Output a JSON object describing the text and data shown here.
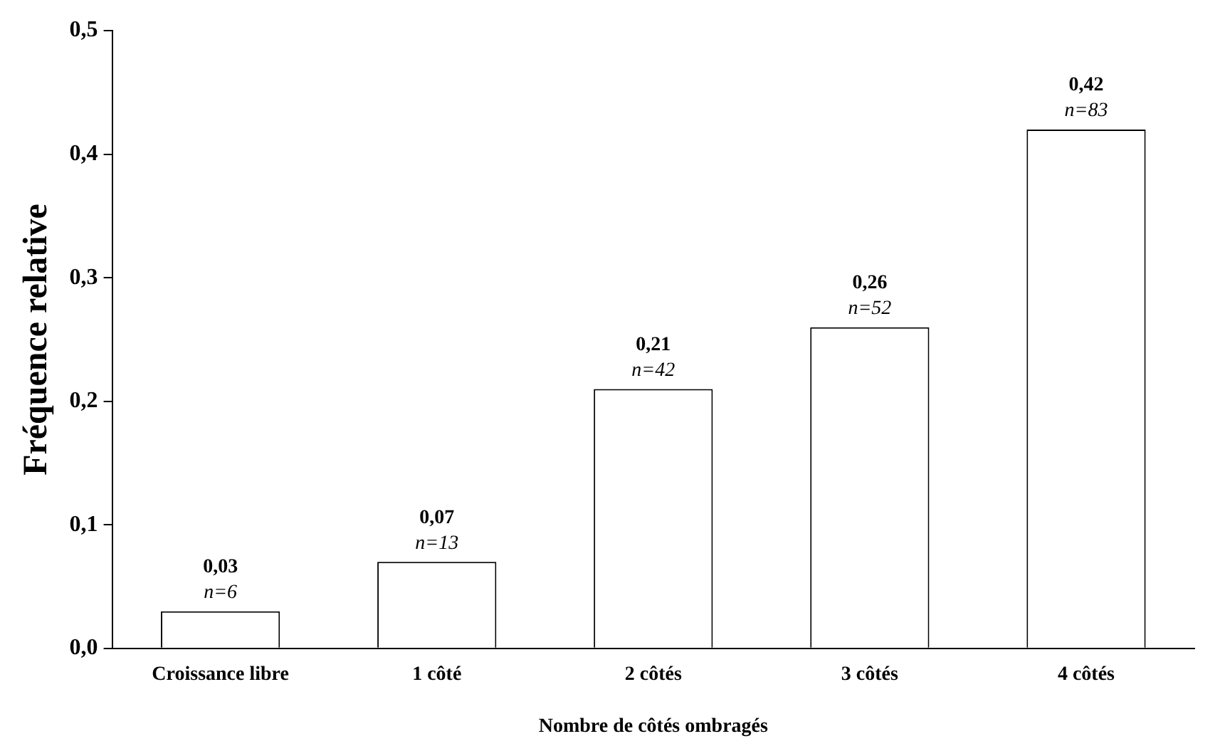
{
  "chart_data": {
    "type": "bar",
    "xlabel": "Nombre de côtés ombragés",
    "ylabel": "Fréquence relative",
    "categories": [
      "Croissance libre",
      "1 côté",
      "2 côtés",
      "3 côtés",
      "4 côtés"
    ],
    "values": [
      0.03,
      0.07,
      0.21,
      0.26,
      0.42
    ],
    "value_labels": [
      "0,03",
      "0,07",
      "0,21",
      "0,26",
      "0,42"
    ],
    "color": "#ffffff",
    "ylim": [
      0,
      0.5
    ],
    "yticks": [
      {
        "value": 0,
        "label": "0,0"
      },
      {
        "value": 0.1,
        "label": "0,1"
      },
      {
        "value": 0.2,
        "label": "0,2"
      },
      {
        "value": 0.3,
        "label": "0,3"
      },
      {
        "value": 0.4,
        "label": "0,4"
      },
      {
        "value": 0.5,
        "label": "0,5"
      }
    ],
    "grid": false,
    "legend": false,
    "annotations": [
      {
        "text": "n=6",
        "x": "Croissance libre",
        "y": 0.03
      },
      {
        "text": "n=13",
        "x": "1 côté",
        "y": 0.07
      },
      {
        "text": "n=42",
        "x": "2 côtés",
        "y": 0.21
      },
      {
        "text": "n=52",
        "x": "3 côtés",
        "y": 0.26
      },
      {
        "text": "n=83",
        "x": "4 côtés",
        "y": 0.42
      }
    ]
  }
}
